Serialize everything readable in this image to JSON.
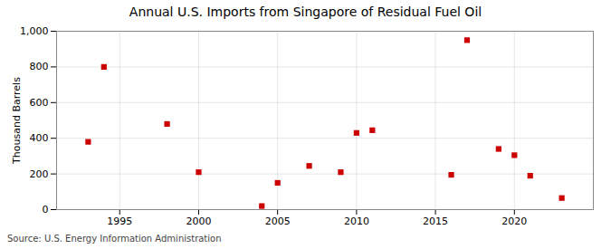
{
  "chart_data": {
    "type": "scatter",
    "title": "Annual U.S. Imports from Singapore of Residual Fuel Oil",
    "ylabel": "Thousand Barrels",
    "annotations": [
      "Source: U.S. Energy Information Administration"
    ],
    "x": [
      1993,
      1994,
      1998,
      2000,
      2004,
      2005,
      2007,
      2009,
      2010,
      2011,
      2016,
      2017,
      2019,
      2020,
      2021,
      2023
    ],
    "values": [
      380,
      800,
      480,
      210,
      20,
      150,
      245,
      210,
      430,
      445,
      195,
      950,
      340,
      305,
      190,
      65
    ],
    "color": "#cc0000",
    "marker": "square",
    "xlim": [
      1991,
      2025
    ],
    "xticks": [
      1995,
      2000,
      2005,
      2010,
      2015,
      2020
    ],
    "ylim": [
      0,
      1000
    ],
    "yticks": [
      0,
      200,
      400,
      600,
      800,
      {
        "value": 1000,
        "label": "1,000"
      }
    ],
    "grid": true
  }
}
